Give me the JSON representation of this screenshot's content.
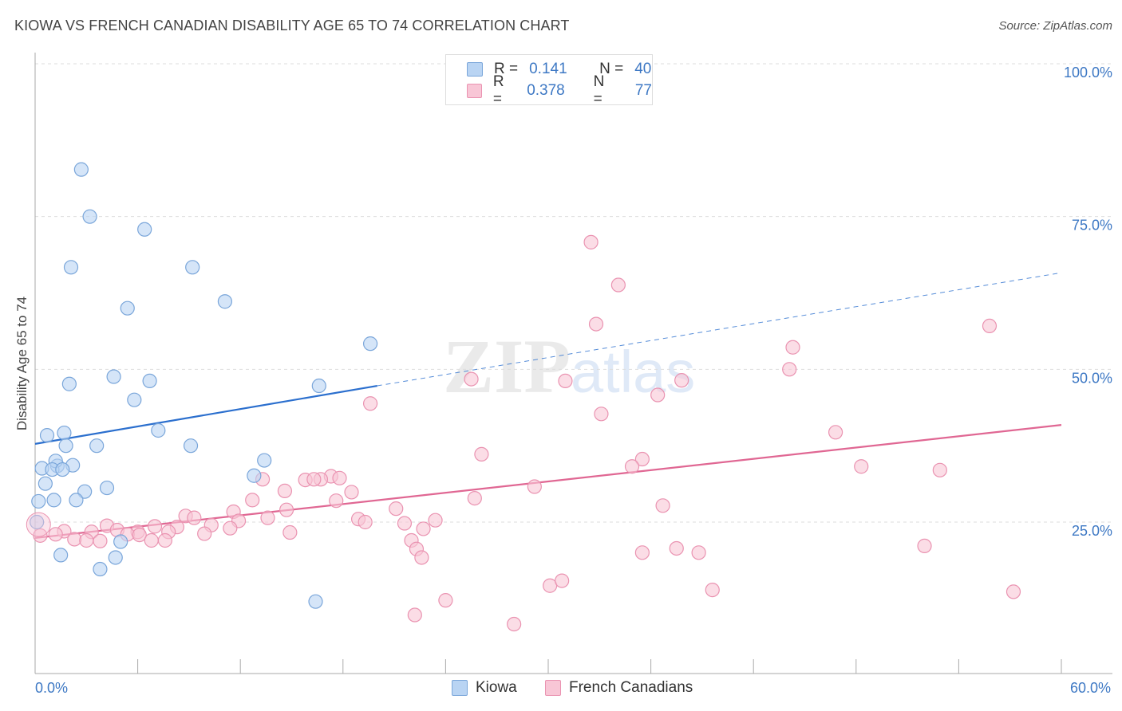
{
  "title": "KIOWA VS FRENCH CANADIAN DISABILITY AGE 65 TO 74 CORRELATION CHART",
  "source": "Source: ZipAtlas.com",
  "watermark": {
    "zip": "ZIP",
    "atlas": "atlas"
  },
  "legend": {
    "rows": [
      {
        "r_label": "R =",
        "r_value": "0.141",
        "n_label": "N =",
        "n_value": "40"
      },
      {
        "r_label": "R =",
        "r_value": "0.378",
        "n_label": "N =",
        "n_value": "77"
      }
    ]
  },
  "colors": {
    "kiowa_fill": "#b9d4f3",
    "kiowa_stroke": "#7aa6da",
    "kiowa_line": "#2b6fce",
    "fc_fill": "#f8c6d6",
    "fc_stroke": "#ea93b1",
    "fc_line": "#e06793",
    "grid": "#dddddd",
    "tick_text": "#3d78c4"
  },
  "chart_data": {
    "type": "scatter",
    "title": "KIOWA VS FRENCH CANADIAN DISABILITY AGE 65 TO 74 CORRELATION CHART",
    "xlabel": "",
    "ylabel": "Disability Age 65 to 74",
    "xlim": [
      0,
      60
    ],
    "ylim": [
      0,
      105
    ],
    "x_tick_labels": [
      "0.0%",
      "60.0%"
    ],
    "y_ticks": [
      25,
      50,
      75,
      100
    ],
    "y_tick_labels": [
      "25.0%",
      "50.0%",
      "75.0%",
      "100.0%"
    ],
    "legend_position": "bottom-center",
    "series": [
      {
        "name": "Kiowa",
        "r": 0.141,
        "n": 40,
        "trend": {
          "x0": 0,
          "y0": 37.8,
          "x1": 20.0,
          "y1": 47.3,
          "x_dashed_end": 60,
          "y_dashed_end": 65.8
        },
        "points": [
          [
            2.7,
            82.7
          ],
          [
            3.2,
            75.0
          ],
          [
            6.4,
            72.9
          ],
          [
            2.1,
            66.7
          ],
          [
            9.2,
            66.7
          ],
          [
            11.1,
            61.1
          ],
          [
            5.4,
            60.0
          ],
          [
            19.6,
            54.2
          ],
          [
            4.6,
            48.8
          ],
          [
            6.7,
            48.1
          ],
          [
            2.0,
            47.6
          ],
          [
            16.6,
            47.3
          ],
          [
            5.8,
            45.0
          ],
          [
            7.2,
            40.0
          ],
          [
            0.7,
            39.2
          ],
          [
            1.7,
            39.6
          ],
          [
            1.8,
            37.5
          ],
          [
            3.6,
            37.5
          ],
          [
            9.1,
            37.5
          ],
          [
            0.4,
            33.8
          ],
          [
            1.3,
            34.2
          ],
          [
            1.2,
            35.0
          ],
          [
            2.2,
            34.3
          ],
          [
            1.0,
            33.6
          ],
          [
            1.6,
            33.6
          ],
          [
            13.4,
            35.1
          ],
          [
            12.8,
            32.6
          ],
          [
            0.6,
            31.3
          ],
          [
            4.2,
            30.6
          ],
          [
            2.9,
            30.0
          ],
          [
            0.2,
            28.4
          ],
          [
            1.1,
            28.6
          ],
          [
            2.4,
            28.6
          ],
          [
            0.1,
            25.0
          ],
          [
            5.0,
            21.8
          ],
          [
            1.5,
            19.6
          ],
          [
            4.7,
            19.2
          ],
          [
            3.8,
            17.3
          ],
          [
            16.4,
            12.0
          ]
        ]
      },
      {
        "name": "French Canadians",
        "r": 0.378,
        "n": 77,
        "trend": {
          "x0": 0,
          "y0": 22.4,
          "x1": 60,
          "y1": 40.9
        },
        "points": [
          [
            32.5,
            70.8
          ],
          [
            34.1,
            63.8
          ],
          [
            32.8,
            57.4
          ],
          [
            55.8,
            57.1
          ],
          [
            44.3,
            53.6
          ],
          [
            44.1,
            50.0
          ],
          [
            25.5,
            48.4
          ],
          [
            31.0,
            48.1
          ],
          [
            37.8,
            48.2
          ],
          [
            36.4,
            45.8
          ],
          [
            19.6,
            44.4
          ],
          [
            33.1,
            42.7
          ],
          [
            46.8,
            39.7
          ],
          [
            26.1,
            36.1
          ],
          [
            35.5,
            35.3
          ],
          [
            34.9,
            34.1
          ],
          [
            48.3,
            34.1
          ],
          [
            52.9,
            33.5
          ],
          [
            17.3,
            32.5
          ],
          [
            16.7,
            32.0
          ],
          [
            15.8,
            31.9
          ],
          [
            16.3,
            32.0
          ],
          [
            17.8,
            32.2
          ],
          [
            13.3,
            32.0
          ],
          [
            14.6,
            30.1
          ],
          [
            18.5,
            29.9
          ],
          [
            29.2,
            30.8
          ],
          [
            25.7,
            28.9
          ],
          [
            17.6,
            28.5
          ],
          [
            12.7,
            28.6
          ],
          [
            36.7,
            27.7
          ],
          [
            11.6,
            26.7
          ],
          [
            21.1,
            27.2
          ],
          [
            14.7,
            27.0
          ],
          [
            8.8,
            26.0
          ],
          [
            9.3,
            25.7
          ],
          [
            13.6,
            25.7
          ],
          [
            11.9,
            25.2
          ],
          [
            18.9,
            25.5
          ],
          [
            19.3,
            25.0
          ],
          [
            23.4,
            25.3
          ],
          [
            21.6,
            24.8
          ],
          [
            10.3,
            24.5
          ],
          [
            8.3,
            24.2
          ],
          [
            11.4,
            24.0
          ],
          [
            7.0,
            24.3
          ],
          [
            4.2,
            24.4
          ],
          [
            6.0,
            23.4
          ],
          [
            22.7,
            23.9
          ],
          [
            14.9,
            23.3
          ],
          [
            4.8,
            23.7
          ],
          [
            3.3,
            23.4
          ],
          [
            1.7,
            23.5
          ],
          [
            0.3,
            22.8
          ],
          [
            1.2,
            23.0
          ],
          [
            7.8,
            23.4
          ],
          [
            9.9,
            23.1
          ],
          [
            5.4,
            23.0
          ],
          [
            6.1,
            22.9
          ],
          [
            2.3,
            22.2
          ],
          [
            3.0,
            22.0
          ],
          [
            3.8,
            21.9
          ],
          [
            7.6,
            22.0
          ],
          [
            6.8,
            22.0
          ],
          [
            22.0,
            22.0
          ],
          [
            37.5,
            20.7
          ],
          [
            52.0,
            21.1
          ],
          [
            35.5,
            20.0
          ],
          [
            38.8,
            20.0
          ],
          [
            22.3,
            20.6
          ],
          [
            22.6,
            19.2
          ],
          [
            30.1,
            14.6
          ],
          [
            30.8,
            15.4
          ],
          [
            39.6,
            13.9
          ],
          [
            57.2,
            13.6
          ],
          [
            24.0,
            12.2
          ],
          [
            22.2,
            9.8
          ],
          [
            28.0,
            8.3
          ]
        ]
      }
    ]
  }
}
